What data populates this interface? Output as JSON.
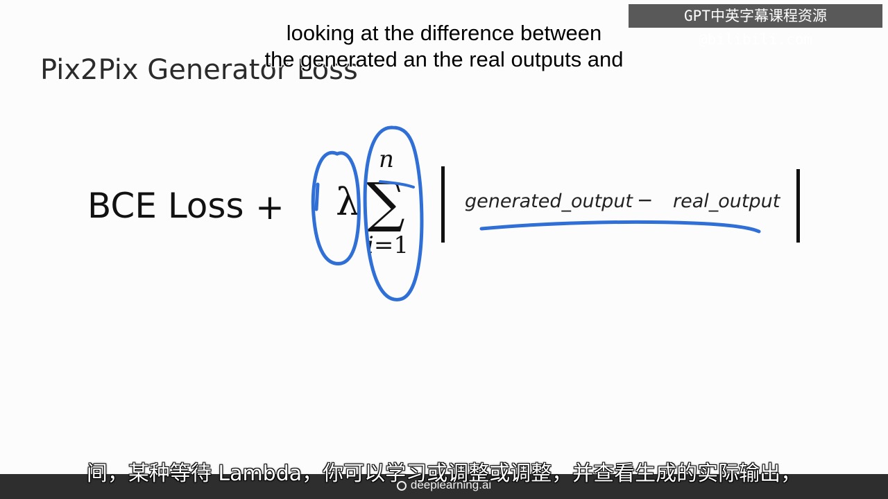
{
  "slide": {
    "title": "Pix2Pix Generator Loss",
    "formula": {
      "bce": "BCE Loss",
      "plus": "+",
      "lambda": "λ",
      "sigma": "∑",
      "sum_upper": "n",
      "sum_lower_var": "i",
      "sum_lower_rest": "=1",
      "generated": "generated_output",
      "minus": "−",
      "real": "real_output"
    }
  },
  "subtitles": {
    "english_line1": "looking at the difference between",
    "english_line2": "the generated an the real outputs and",
    "chinese": "间，某种等待 Lambda，你可以学习或调整或调整，并查看生成的实际输出，"
  },
  "watermark": {
    "text": "GPT中英字幕课程资源@bilibili.com"
  },
  "footer": {
    "brand": "deeplearning.ai"
  },
  "colors": {
    "annotation": "#2f6fd6",
    "footer_bg": "#2e2e2e"
  }
}
